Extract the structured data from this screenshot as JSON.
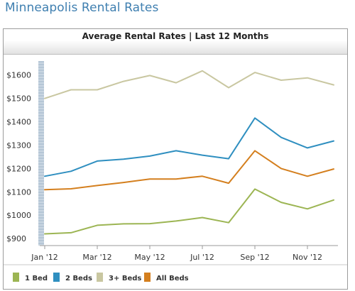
{
  "page": {
    "title": "Minneapolis Rental Rates"
  },
  "chart_data": {
    "type": "line",
    "title": "Average Rental Rates | Last 12 Months",
    "xlabel": "",
    "ylabel": "",
    "x": [
      "Jan '12",
      "Feb '12",
      "Mar '12",
      "Apr '12",
      "May '12",
      "Jun '12",
      "Jul '12",
      "Aug '12",
      "Sep '12",
      "Oct '12",
      "Nov '12",
      "Dec '12"
    ],
    "x_tick_labels": [
      "Jan '12",
      "Mar '12",
      "May '12",
      "Jul '12",
      "Sep '12",
      "Nov '12"
    ],
    "y_ticks": [
      900,
      1000,
      1100,
      1200,
      1300,
      1400,
      1500,
      1600
    ],
    "y_tick_labels": [
      "$900",
      "$1000",
      "$1100",
      "$1200",
      "$1300",
      "$1400",
      "$1500",
      "$1600"
    ],
    "ylim": [
      870,
      1660
    ],
    "grid": false,
    "legend_position": "bottom",
    "series": [
      {
        "name": "1 Bed",
        "color": "#9cb553",
        "values": [
          920,
          925,
          957,
          963,
          964,
          975,
          990,
          968,
          1112,
          1055,
          1027,
          1065
        ]
      },
      {
        "name": "2 Beds",
        "color": "#2f8fc0",
        "values": [
          1167,
          1188,
          1232,
          1240,
          1253,
          1276,
          1257,
          1242,
          1416,
          1333,
          1288,
          1318
        ]
      },
      {
        "name": "3+ Beds",
        "color": "#c9c7a1",
        "values": [
          1500,
          1537,
          1537,
          1573,
          1598,
          1567,
          1618,
          1546,
          1611,
          1578,
          1588,
          1558
        ]
      },
      {
        "name": "All Beds",
        "color": "#d47f1e",
        "values": [
          1109,
          1113,
          1127,
          1140,
          1155,
          1155,
          1167,
          1137,
          1276,
          1200,
          1167,
          1198
        ]
      }
    ]
  }
}
